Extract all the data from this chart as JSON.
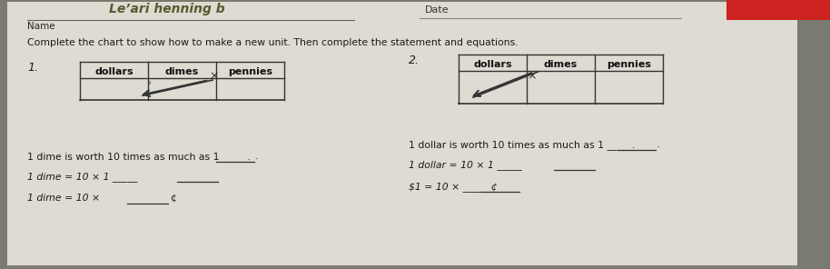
{
  "bg_color": "#888880",
  "paper_color": "#e0ddd6",
  "title_text": "Complete the chart to show how to make a new unit. Then complete the statement and equations.",
  "name_label": "Name",
  "date_label": "Date",
  "handwriting_text": "Le’ari henning b",
  "chart1_label": "1.",
  "chart1_headers": [
    "dollars",
    "dimes",
    "pennies"
  ],
  "chart2_label": "2.",
  "chart2_headers": [
    "dollars",
    "dimes",
    "pennies"
  ],
  "stmt1": "1 dime is worth 10 times as much as 1 _____.",
  "stmt2": "1 dollar is worth 10 times as much as 1 _____.",
  "eq1a": "1 dime = 10 × 1 _____",
  "eq2a": "1 dollar = 10 × 1 _____",
  "eq2b": "$1 = 10 × _____ ¢",
  "eq1b": "1 dime = 10 ×",
  "eq1b_unit": "¢",
  "text_color": "#1a1a1a",
  "line_color": "#333333",
  "header_color": "#111111"
}
